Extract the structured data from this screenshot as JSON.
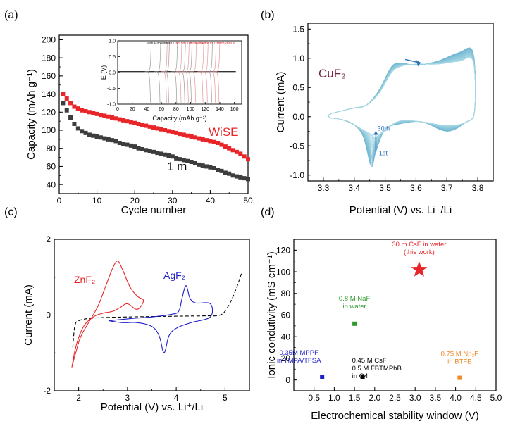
{
  "figure": {
    "panel_labels": [
      "(a)",
      "(b)",
      "(c)",
      "(d)"
    ]
  },
  "chart_data": [
    {
      "id": "a",
      "type": "scatter",
      "xlabel": "Cycle number",
      "ylabel": "Capacity (mAh g⁻¹)",
      "xlim": [
        0,
        50
      ],
      "ylim": [
        30,
        205
      ],
      "x_ticks": [
        0,
        10,
        20,
        30,
        40,
        50
      ],
      "y_ticks": [
        40,
        60,
        80,
        100,
        120,
        140,
        160,
        180,
        200
      ],
      "series": [
        {
          "name": "WiSE",
          "label": "WiSE",
          "color": "#e8262a",
          "x": [
            1,
            2,
            3,
            4,
            5,
            6,
            7,
            8,
            9,
            10,
            11,
            12,
            13,
            14,
            15,
            16,
            17,
            18,
            19,
            20,
            21,
            22,
            23,
            24,
            25,
            26,
            27,
            28,
            29,
            30,
            31,
            32,
            33,
            34,
            35,
            36,
            37,
            38,
            39,
            40,
            41,
            42,
            43,
            44,
            45,
            46,
            47,
            48,
            49,
            50
          ],
          "values": [
            140,
            135,
            130,
            126,
            124,
            122,
            121,
            120,
            119,
            118,
            117,
            116,
            115,
            114,
            113,
            112,
            111,
            110,
            109,
            108,
            107,
            106,
            105,
            104,
            103,
            102,
            101,
            100,
            99,
            98,
            97,
            96,
            95,
            94,
            93,
            92,
            91,
            90,
            89,
            88,
            87,
            86,
            84,
            82,
            80,
            78,
            76,
            74,
            71,
            68
          ]
        },
        {
          "name": "1 m",
          "label": "1 m",
          "color": "#3d3d3d",
          "x": [
            1,
            2,
            3,
            4,
            5,
            6,
            7,
            8,
            9,
            10,
            11,
            12,
            13,
            14,
            15,
            16,
            17,
            18,
            19,
            20,
            21,
            22,
            23,
            24,
            25,
            26,
            27,
            28,
            29,
            30,
            31,
            32,
            33,
            34,
            35,
            36,
            37,
            38,
            39,
            40,
            41,
            42,
            43,
            44,
            45,
            46,
            47,
            48,
            49,
            50
          ],
          "values": [
            130,
            122,
            114,
            107,
            102,
            99,
            97,
            95,
            94,
            93,
            92,
            91,
            90,
            89,
            88,
            86,
            85,
            84,
            83,
            82,
            80,
            79,
            78,
            77,
            76,
            75,
            74,
            73,
            72,
            71,
            69,
            68,
            67,
            66,
            65,
            64,
            62,
            61,
            60,
            59,
            58,
            56,
            55,
            53,
            52,
            50,
            49,
            48,
            47,
            46
          ]
        }
      ],
      "inset": {
        "type": "line",
        "xlabel": "Capacity (mAh g⁻¹)",
        "ylabel": "E (V)",
        "xlim": [
          0,
          170
        ],
        "ylim": [
          -1.0,
          1.0
        ],
        "x_ticks": [
          0,
          20,
          40,
          60,
          80,
          100,
          120,
          140,
          160
        ],
        "y_ticks": [
          -1.0,
          -0.5,
          0.0,
          0.5,
          1.0
        ],
        "cycle_labels": [
          "50th",
          "40th",
          "30th",
          "20th",
          "10th",
          "5th",
          "1st",
          "50th",
          "40th",
          "30th",
          "20th",
          "10th",
          "5th",
          "2nd",
          "1st"
        ],
        "cycle_capacities_1m": [
          46,
          59,
          71,
          82,
          93,
          102,
          130
        ],
        "cycle_capacities_wise": [
          68,
          88,
          98,
          108,
          118,
          124,
          135,
          140
        ]
      }
    },
    {
      "id": "b",
      "type": "line",
      "xlabel": "Potential (V) vs. Li⁺/Li",
      "ylabel": "Current (mA)",
      "xlim": [
        3.25,
        3.85
      ],
      "ylim": [
        -1.1,
        1.6
      ],
      "x_ticks": [
        3.3,
        3.4,
        3.5,
        3.6,
        3.7,
        3.8
      ],
      "y_ticks": [
        -1.0,
        -0.5,
        0.0,
        0.5,
        1.0,
        1.5
      ],
      "annotations": [
        "CuF₂",
        "30th",
        "1st"
      ],
      "series_description": "cyclic voltammograms, cycles 1 to 30",
      "cathodic_peak": [
        3.46,
        -0.87
      ],
      "anodic_peak": [
        3.73,
        1.1
      ]
    },
    {
      "id": "c",
      "type": "line",
      "xlabel": "Potential (V) vs. Li⁺/Li",
      "ylabel": "Current (mA)",
      "xlim": [
        1.5,
        5.5
      ],
      "ylim": [
        -2,
        2
      ],
      "x_ticks": [
        2,
        3,
        4,
        5
      ],
      "y_ticks": [
        -2,
        0,
        2
      ],
      "series": [
        {
          "name": "ZnF2",
          "label": "ZnF₂",
          "color": "#e8262a"
        },
        {
          "name": "AgF2",
          "label": "AgF₂",
          "color": "#1e1ec8"
        },
        {
          "name": "baseline",
          "label": "",
          "color": "#000000",
          "style": "dashed"
        }
      ],
      "znf2_peak": [
        2.8,
        1.45
      ],
      "agf2_peaks": [
        [
          4.2,
          0.8
        ],
        [
          3.73,
          -1.0
        ]
      ]
    },
    {
      "id": "d",
      "type": "scatter",
      "xlabel": "Electrochemical stability window (V)",
      "ylabel": "Ionic condutivity (mS cm⁻¹)",
      "xlim": [
        0,
        5.0
      ],
      "ylim": [
        -10,
        130
      ],
      "x_ticks": [
        0.5,
        1.0,
        1.5,
        2.0,
        2.5,
        3.0,
        3.5,
        4.0,
        4.5,
        5.0
      ],
      "y_ticks": [
        0,
        20,
        40,
        60,
        80,
        100,
        120
      ],
      "points": [
        {
          "x": 3.1,
          "y": 102,
          "label_lines": [
            "30 m CsF in water",
            "(this work)"
          ],
          "color": "#e8262a",
          "marker": "star"
        },
        {
          "x": 1.5,
          "y": 52,
          "label_lines": [
            "0.8 M NaF",
            "in water"
          ],
          "color": "#2e9a2e",
          "marker": "square"
        },
        {
          "x": 0.7,
          "y": 3,
          "label_lines": [
            "0.35M MPPF",
            "in TMPA/TFSA"
          ],
          "color": "#1e1ec8",
          "marker": "square"
        },
        {
          "x": 1.7,
          "y": 3,
          "label_lines": [
            "0.45 M CsF",
            "0.5 M FBTMPhB",
            "in G4"
          ],
          "color": "#000000",
          "marker": "square"
        },
        {
          "x": 4.1,
          "y": 2,
          "label_lines": [
            "0.75 M Np₂F",
            "in BTFE"
          ],
          "color": "#f08a28",
          "marker": "square"
        }
      ]
    }
  ]
}
